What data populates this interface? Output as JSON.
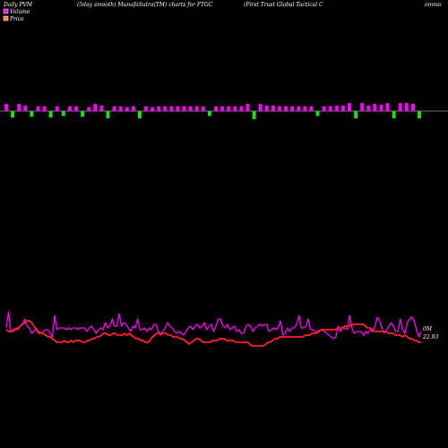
{
  "header": {
    "left": "Daily PVM",
    "center_left": "(5day smooth) MunafaSutra(TM) charts for FTGC",
    "center_right": "(First Trust Global Tactical C",
    "right": "ommo"
  },
  "legend": [
    {
      "label": "Volume",
      "color": "#ff00ff"
    },
    {
      "label": "Price",
      "color": "#ff8040"
    }
  ],
  "chart_data": {
    "type": "line",
    "volume_bars": {
      "baseline": 0,
      "values": [
        0.9,
        -0.8,
        0.9,
        0.7,
        -0.7,
        0.6,
        0.6,
        -0.8,
        0.6,
        -0.6,
        0.6,
        0.6,
        -0.7,
        0.5,
        0.9,
        0.7,
        -0.9,
        0.6,
        0.6,
        0.5,
        0.6,
        -0.9,
        0.6,
        0.5,
        0.6,
        0.6,
        0.6,
        0.6,
        0.6,
        0.6,
        0.6,
        0.6,
        -0.6,
        0.6,
        0.6,
        0.6,
        0.6,
        0.6,
        0.9,
        -1.0,
        0.9,
        0.7,
        0.7,
        0.6,
        0.6,
        0.6,
        0.6,
        0.6,
        0.6,
        -0.6,
        0.6,
        0.6,
        0.7,
        0.7,
        1.0,
        -0.9,
        1.0,
        0.7,
        0.9,
        0.8,
        1.0,
        -0.9,
        1.0,
        1.0,
        0.9,
        -0.9
      ],
      "positive_color": "#ff00ff",
      "negative_color": "#22dd22"
    },
    "series": [
      {
        "name": "Volume",
        "color": "#ff00ff",
        "values": [
          53,
          44,
          55,
          55,
          53,
          54,
          52,
          51,
          48,
          52,
          53,
          56,
          55,
          53,
          55,
          56,
          55,
          54,
          54,
          56,
          58,
          46,
          54,
          53,
          53,
          53,
          54,
          53,
          54,
          53,
          53,
          54,
          53,
          53,
          53,
          55,
          53,
          52,
          54,
          56,
          54,
          53,
          54,
          50,
          53,
          52,
          48,
          52,
          52,
          45,
          52,
          50,
          51,
          53,
          55,
          52,
          53,
          48,
          54,
          54,
          53,
          55,
          53,
          54,
          51,
          51,
          55,
          57,
          55,
          53,
          50,
          52,
          53,
          55,
          56,
          55,
          56,
          57,
          55,
          53,
          52,
          54,
          52,
          51,
          53,
          52,
          50,
          54,
          52,
          51,
          55,
          52,
          48,
          48,
          52,
          53,
          51,
          54,
          53,
          52,
          55,
          54,
          56,
          56,
          52,
          51,
          52,
          55,
          53,
          52,
          51,
          52,
          51,
          51,
          55,
          54,
          53,
          54,
          53,
          49,
          57,
          56,
          53,
          55,
          53,
          53,
          51,
          46,
          53,
          53,
          52,
          48,
          54,
          54,
          55,
          55,
          54,
          54,
          55,
          56,
          57,
          58,
          59,
          58,
          52,
          55,
          53,
          53,
          54,
          46,
          53,
          56,
          55,
          55,
          55,
          57,
          55,
          56,
          54,
          55,
          52,
          47,
          49,
          53,
          56,
          54,
          52,
          50,
          52,
          55,
          55,
          48,
          54,
          56,
          50,
          48,
          47,
          49,
          54,
          58,
          55
        ]
      },
      {
        "name": "Price",
        "color": "#ff2020",
        "values": [
          54,
          55,
          55,
          54,
          54,
          53,
          52,
          51,
          50,
          49,
          49,
          50,
          52,
          54,
          56,
          56,
          56,
          57,
          58,
          58,
          59,
          60,
          61,
          61,
          61,
          60,
          61,
          61,
          60,
          61,
          60,
          60,
          60,
          61,
          61,
          60,
          60,
          59,
          59,
          58,
          58,
          57,
          56,
          56,
          57,
          57,
          56,
          56,
          57,
          57,
          57,
          56,
          57,
          56,
          57,
          58,
          59,
          59,
          60,
          60,
          61,
          61,
          60,
          58,
          57,
          56,
          56,
          56,
          56,
          56,
          57,
          57,
          58,
          58,
          58,
          59,
          59,
          60,
          61,
          62,
          61,
          60,
          59,
          59,
          60,
          61,
          61,
          61,
          61,
          60,
          60,
          60,
          59,
          59,
          59,
          60,
          60,
          60,
          60,
          61,
          61,
          61,
          61,
          61,
          61,
          62,
          63,
          63,
          63,
          63,
          63,
          63,
          62,
          61,
          61,
          60,
          59,
          59,
          58,
          58,
          58,
          58,
          58,
          58,
          58,
          58,
          58,
          58,
          58,
          57,
          57,
          57,
          56,
          56,
          56,
          55,
          54,
          54,
          54,
          54,
          54,
          54,
          54,
          53,
          53,
          53,
          52,
          52,
          52,
          51,
          51,
          51,
          51,
          51,
          51,
          52,
          53,
          53,
          54,
          55,
          55,
          55,
          55,
          55,
          55,
          56,
          56,
          56,
          57,
          57,
          57,
          58,
          57,
          58,
          59,
          59,
          60,
          60,
          61,
          61
        ]
      }
    ],
    "last_value_labels": [
      "0M",
      "22.93"
    ],
    "grid": false
  }
}
